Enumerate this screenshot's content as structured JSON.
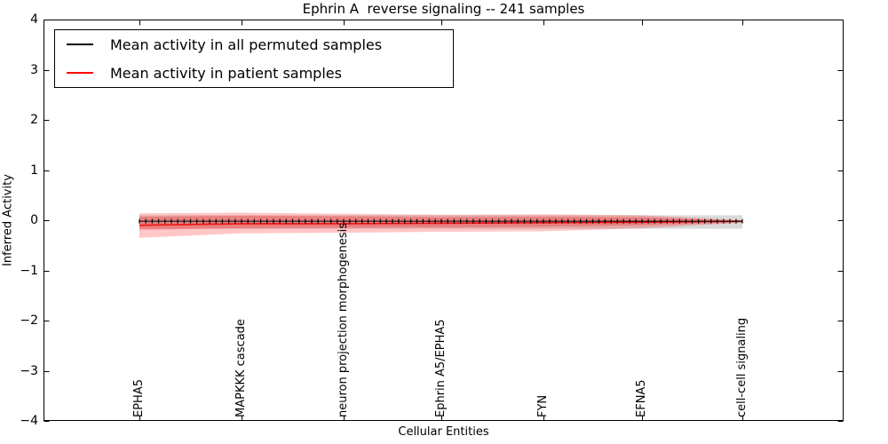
{
  "chart_data": {
    "type": "line",
    "title": "Ephrin A  reverse signaling -- 241 samples",
    "xlabel": "Cellular Entities",
    "ylabel": "Inferred Activity",
    "ylim": [
      -4,
      4
    ],
    "yticks": [
      4,
      3,
      2,
      1,
      0,
      -1,
      -2,
      -3,
      -4
    ],
    "grid": false,
    "legend_position": "upper left",
    "categories": [
      "EPHA5",
      "MAPKKK cascade",
      "neuron projection morphogenesis",
      "Ephrin A5/EPHA5",
      "FYN",
      "EFNA5",
      "cell-cell signaling"
    ],
    "n_points": 97,
    "x_tick_every_n_points": 16,
    "series": [
      {
        "name": "Mean activity in all permuted samples",
        "color": "#000000",
        "style": "solid line with small vertical tick markers at each point",
        "values_at_categories": [
          -0.02,
          -0.02,
          -0.02,
          -0.02,
          -0.02,
          -0.02,
          -0.02
        ]
      },
      {
        "name": "Mean activity in patient samples",
        "color": "#ee1111",
        "style": "solid",
        "values_at_categories": [
          -0.1,
          -0.07,
          -0.07,
          -0.06,
          -0.05,
          -0.04,
          -0.02
        ]
      }
    ],
    "bands": [
      {
        "name": "permuted-samples-spread",
        "color": "#bbbbbb",
        "opacity": 0.55,
        "upper_at_categories": [
          0.1,
          0.1,
          0.1,
          0.1,
          0.1,
          0.1,
          0.1
        ],
        "lower_at_categories": [
          -0.17,
          -0.17,
          -0.17,
          -0.17,
          -0.17,
          -0.17,
          -0.17
        ]
      },
      {
        "name": "patient-samples-spread-outer",
        "color": "#ff0000",
        "opacity": 0.22,
        "upper_at_categories": [
          0.14,
          0.15,
          0.13,
          0.11,
          0.12,
          0.1,
          0.0
        ],
        "lower_at_categories": [
          -0.35,
          -0.26,
          -0.25,
          -0.23,
          -0.22,
          -0.16,
          -0.05
        ]
      },
      {
        "name": "patient-samples-spread-inner",
        "color": "#ff0000",
        "opacity": 0.25,
        "upper_at_categories": [
          0.07,
          0.09,
          0.08,
          0.06,
          0.07,
          0.06,
          -0.01
        ],
        "lower_at_categories": [
          -0.19,
          -0.16,
          -0.15,
          -0.14,
          -0.13,
          -0.1,
          -0.04
        ]
      }
    ]
  },
  "legend": {
    "entries": [
      {
        "label": "Mean activity in all permuted samples",
        "color": "#000000"
      },
      {
        "label": "Mean activity in patient samples",
        "color": "#ff0000"
      }
    ]
  }
}
